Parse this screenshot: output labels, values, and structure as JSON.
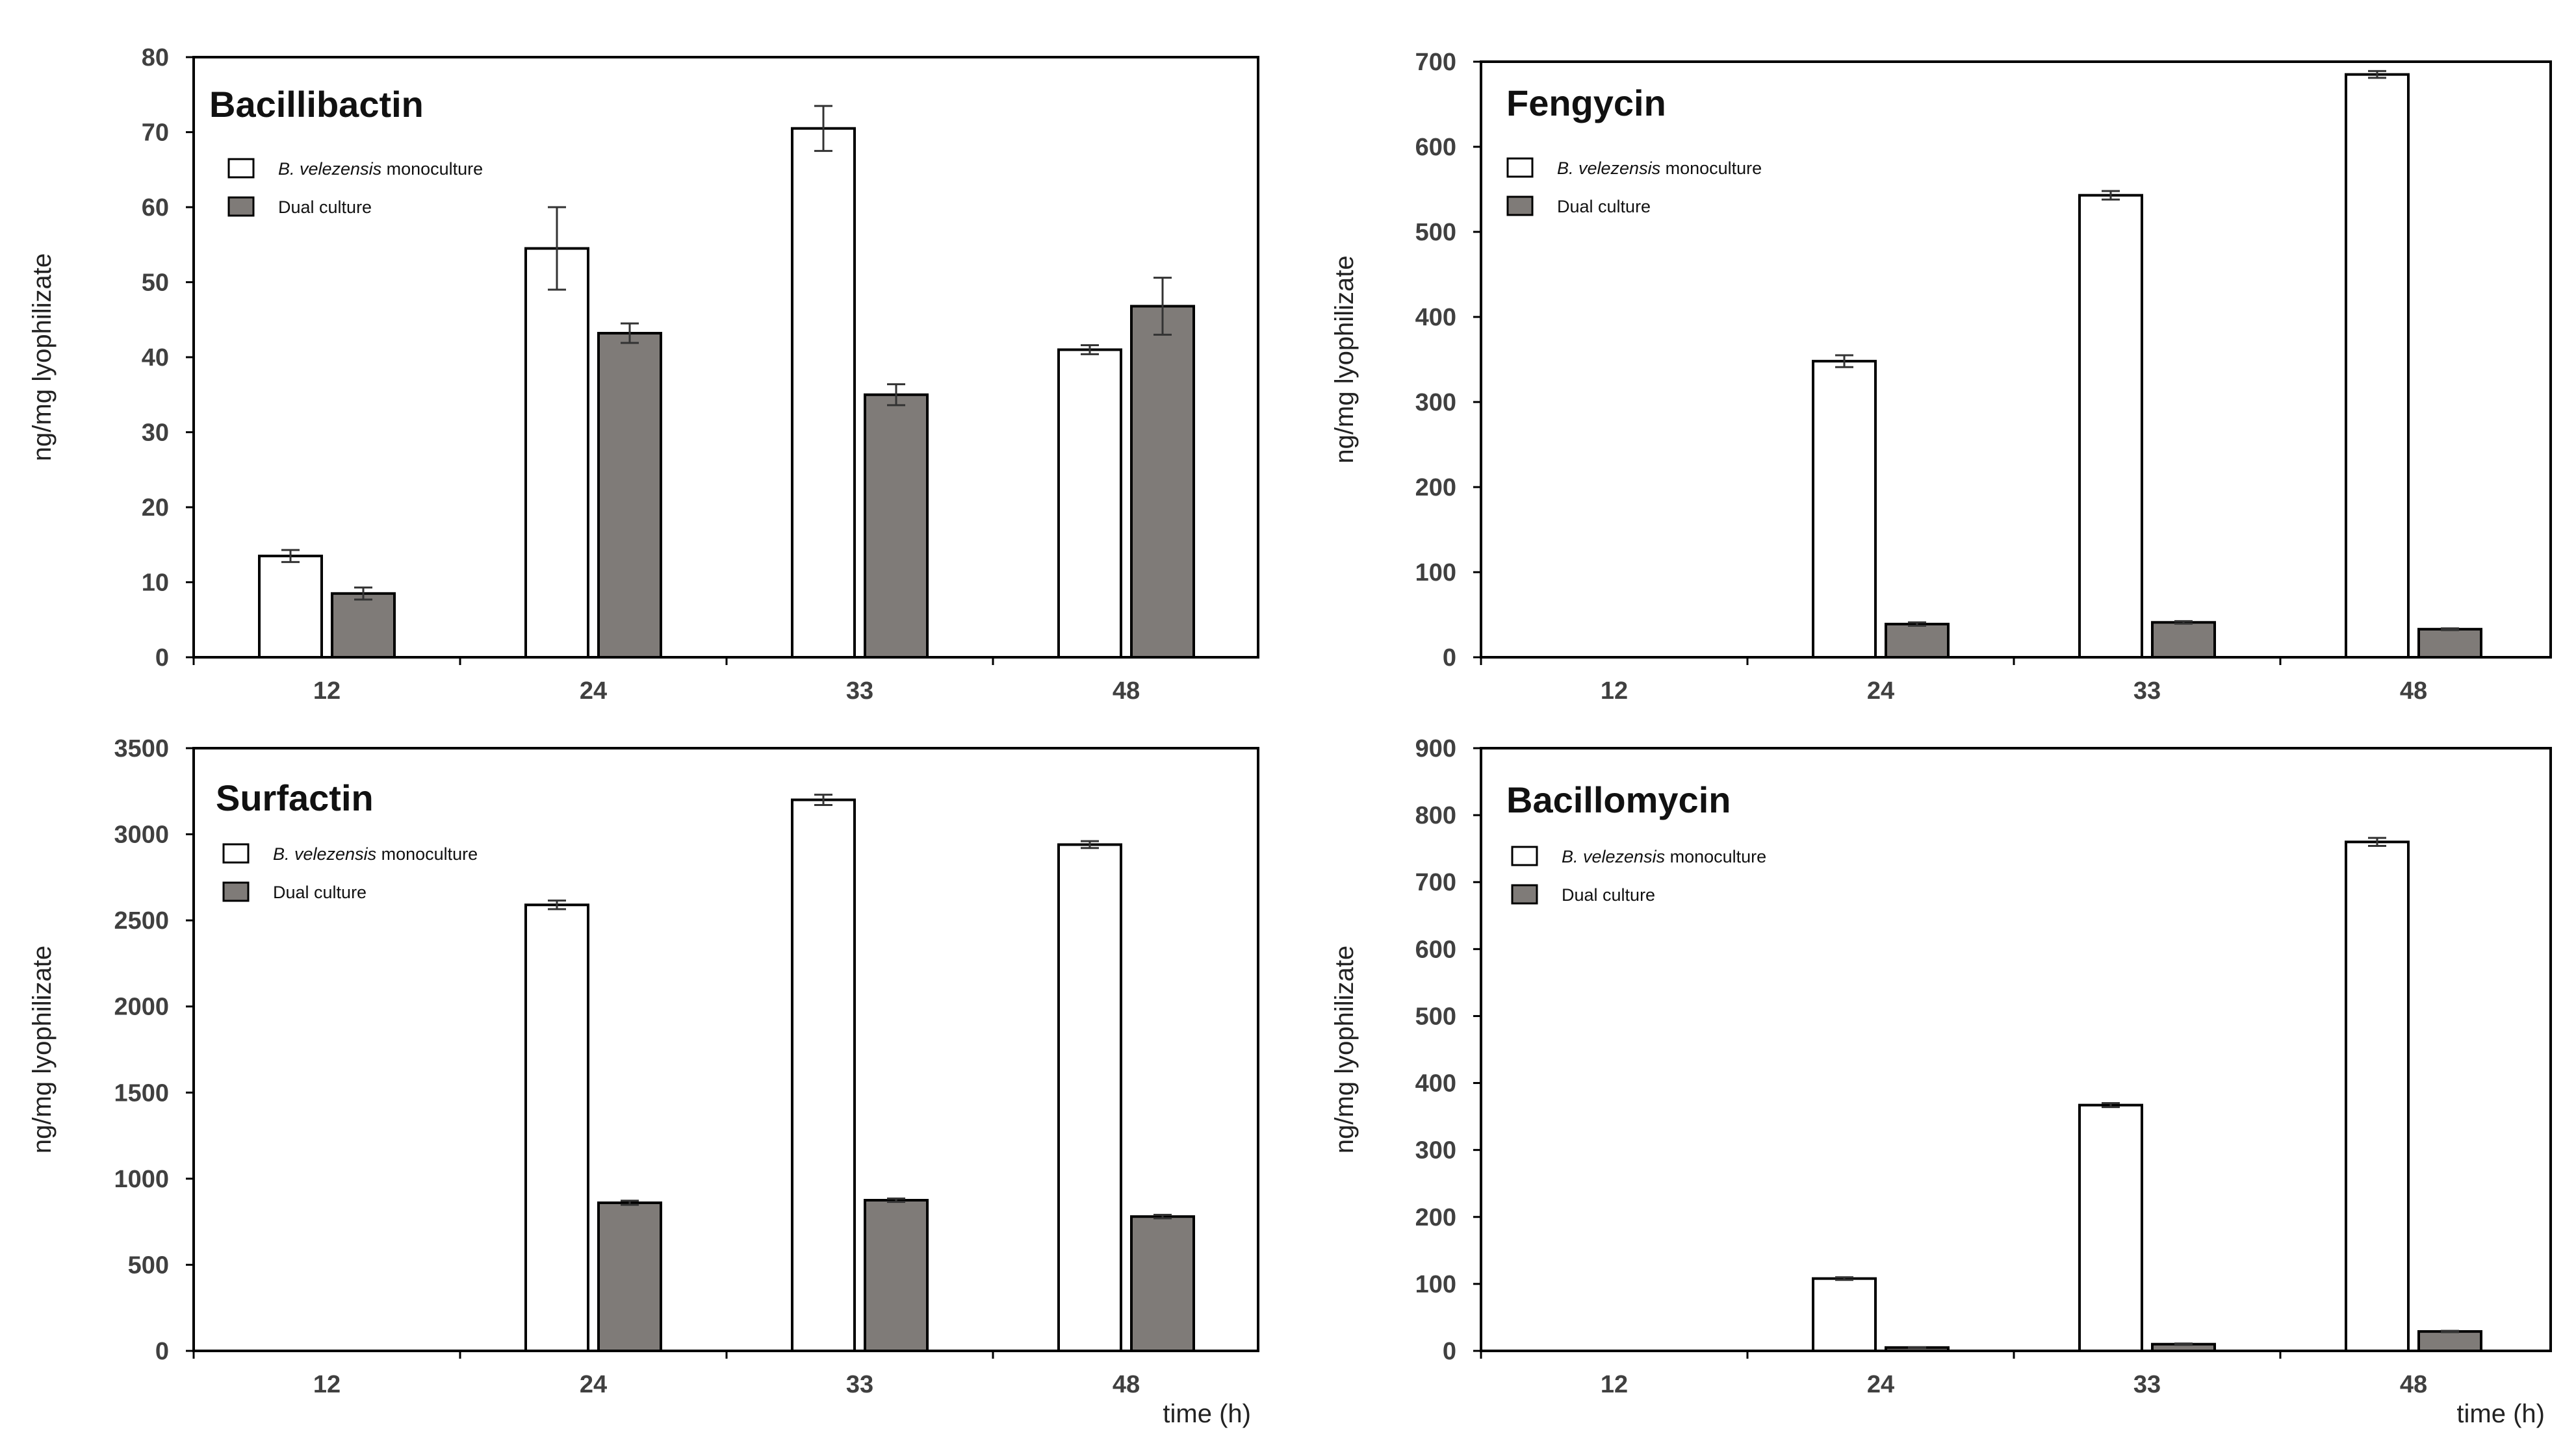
{
  "chart_data": [
    {
      "type": "bar",
      "title": "Bacillibactin",
      "categories": [
        "12",
        "24",
        "33",
        "48"
      ],
      "xlabel": "",
      "ylabel": "ng/mg lyophilizate",
      "ylim": [
        0,
        80
      ],
      "yticks": [
        0,
        10,
        20,
        30,
        40,
        50,
        60,
        70,
        80
      ],
      "series": [
        {
          "name": "B. velezensis monoculture",
          "name_italic": "B. velezensis",
          "name_rest": "monoculture",
          "color": "#ffffff",
          "values": [
            13.5,
            54.5,
            70.5,
            41
          ],
          "errors": [
            0.8,
            5.5,
            3,
            0.6
          ]
        },
        {
          "name": "Dual culture",
          "color": "#7f7b78",
          "values": [
            8.5,
            43.2,
            35,
            46.8
          ],
          "errors": [
            0.8,
            1.3,
            1.4,
            3.8
          ]
        }
      ]
    },
    {
      "type": "bar",
      "title": "Fengycin",
      "categories": [
        "12",
        "24",
        "33",
        "48"
      ],
      "xlabel": "",
      "ylabel": "ng/mg lyophilizate",
      "ylim": [
        0,
        700
      ],
      "yticks": [
        0,
        100,
        200,
        300,
        400,
        500,
        600,
        700
      ],
      "series": [
        {
          "name": "B. velezensis monoculture",
          "name_italic": "B. velezensis",
          "name_rest": "monoculture",
          "color": "#ffffff",
          "values": [
            0,
            348,
            543,
            685
          ],
          "errors": [
            0,
            7,
            5,
            4
          ]
        },
        {
          "name": "Dual culture",
          "color": "#7f7b78",
          "values": [
            0,
            39,
            41,
            33
          ],
          "errors": [
            0,
            2,
            1.5,
            1
          ]
        }
      ]
    },
    {
      "type": "bar",
      "title": "Surfactin",
      "categories": [
        "12",
        "24",
        "33",
        "48"
      ],
      "xlabel": "time (h)",
      "ylabel": "ng/mg lyophilizate",
      "ylim": [
        0,
        3500
      ],
      "yticks": [
        0,
        500,
        1000,
        1500,
        2000,
        2500,
        3000,
        3500
      ],
      "series": [
        {
          "name": "B. velezensis monoculture",
          "name_italic": "B. velezensis",
          "name_rest": "monoculture",
          "color": "#ffffff",
          "values": [
            0,
            2590,
            3200,
            2940
          ],
          "errors": [
            0,
            25,
            30,
            20
          ]
        },
        {
          "name": "Dual culture",
          "color": "#7f7b78",
          "values": [
            0,
            860,
            875,
            780
          ],
          "errors": [
            0,
            12,
            10,
            10
          ]
        }
      ]
    },
    {
      "type": "bar",
      "title": "Bacillomycin",
      "categories": [
        "12",
        "24",
        "33",
        "48"
      ],
      "xlabel": "time (h)",
      "ylabel": "ng/mg lyophilizate",
      "ylim": [
        0,
        900
      ],
      "yticks": [
        0,
        100,
        200,
        300,
        400,
        500,
        600,
        700,
        800,
        900
      ],
      "series": [
        {
          "name": "B. velezensis monoculture",
          "name_italic": "B. velezensis",
          "name_rest": "monoculture",
          "color": "#ffffff",
          "values": [
            0,
            108,
            367,
            760
          ],
          "errors": [
            0,
            2,
            3,
            6
          ]
        },
        {
          "name": "Dual culture",
          "color": "#7f7b78",
          "values": [
            0,
            5,
            10,
            29
          ],
          "errors": [
            0,
            0.5,
            1,
            1
          ]
        }
      ]
    }
  ]
}
